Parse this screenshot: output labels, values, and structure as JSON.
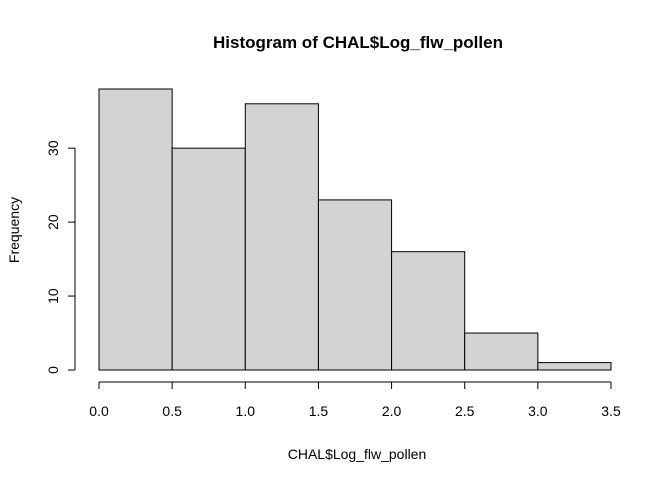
{
  "chart_data": {
    "type": "bar",
    "title": "Histogram of CHAL$Log_flw_pollen",
    "xlabel": "CHAL$Log_flw_pollen",
    "ylabel": "Frequency",
    "bins": [
      {
        "start": 0.0,
        "end": 0.5,
        "count": 38
      },
      {
        "start": 0.5,
        "end": 1.0,
        "count": 30
      },
      {
        "start": 1.0,
        "end": 1.5,
        "count": 36
      },
      {
        "start": 1.5,
        "end": 2.0,
        "count": 23
      },
      {
        "start": 2.0,
        "end": 2.5,
        "count": 16
      },
      {
        "start": 2.5,
        "end": 3.0,
        "count": 5
      },
      {
        "start": 3.0,
        "end": 3.5,
        "count": 1
      }
    ],
    "xlim": [
      0,
      3.5
    ],
    "ylim": [
      0,
      38
    ],
    "x_ticks": [
      "0.0",
      "0.5",
      "1.0",
      "1.5",
      "2.0",
      "2.5",
      "3.0",
      "3.5"
    ],
    "y_ticks": [
      "0",
      "10",
      "20",
      "30"
    ],
    "bar_fill": "#d3d3d3",
    "bar_stroke": "#000000",
    "grid": false,
    "legend": "none"
  }
}
